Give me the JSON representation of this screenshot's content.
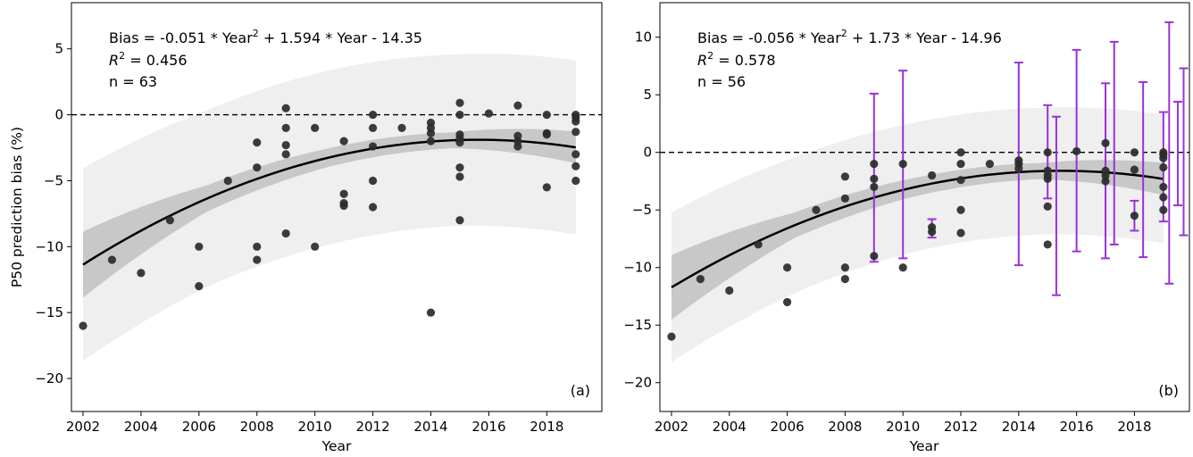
{
  "chart_data": [
    {
      "type": "scatter",
      "panel_label": "(a)",
      "xlabel": "Year",
      "ylabel": "P50 prediction bias (%)",
      "xlim": [
        2001.6,
        2019.9
      ],
      "ylim": [
        -22.5,
        8.5
      ],
      "xticks": [
        2002,
        2004,
        2006,
        2008,
        2010,
        2012,
        2014,
        2016,
        2018
      ],
      "yticks": [
        5,
        0,
        -5,
        -10,
        -15,
        -20
      ],
      "ytick_labels": [
        "5",
        "0",
        "−5",
        "−10",
        "−15",
        "−20"
      ],
      "grid": false,
      "reference_line": {
        "y": 0,
        "style": "dashed"
      },
      "annotation": {
        "eq_prefix": "Bias = -0.051 * Year",
        "eq_exp": "2",
        "eq_suffix": " + 1.594 * Year - 14.35",
        "r2_symbol": "R",
        "r2_exp": "2",
        "r2_value": " = 0.456",
        "n_text": "n = 63"
      },
      "fit": {
        "a": -0.051,
        "b": 1.594,
        "c": -14.35,
        "x_start": 2002,
        "x_end": 2019,
        "ci_half_width": [
          2.5,
          1.0,
          0.7,
          0.6,
          1.2
        ],
        "pi_half_width": [
          7.3,
          6.7,
          6.6,
          6.5,
          6.6
        ]
      },
      "points": [
        [
          2002,
          -16
        ],
        [
          2003,
          -11
        ],
        [
          2004,
          -12
        ],
        [
          2005,
          -8
        ],
        [
          2006,
          -10
        ],
        [
          2006,
          -13
        ],
        [
          2007,
          -5
        ],
        [
          2008,
          -2.1
        ],
        [
          2008,
          -4
        ],
        [
          2008,
          -10
        ],
        [
          2008,
          -11
        ],
        [
          2009,
          0.5
        ],
        [
          2009,
          -1
        ],
        [
          2009,
          -2.3
        ],
        [
          2009,
          -3
        ],
        [
          2009,
          -9
        ],
        [
          2010,
          -1
        ],
        [
          2010,
          -10
        ],
        [
          2011,
          -2
        ],
        [
          2011,
          -6
        ],
        [
          2011,
          -6.7
        ],
        [
          2011,
          -6.9
        ],
        [
          2012,
          0
        ],
        [
          2012,
          -1
        ],
        [
          2012,
          -2.4
        ],
        [
          2012,
          -5
        ],
        [
          2012,
          -7
        ],
        [
          2013,
          -1
        ],
        [
          2014,
          -0.6
        ],
        [
          2014,
          -1
        ],
        [
          2014,
          -1.4
        ],
        [
          2014,
          -2
        ],
        [
          2014,
          -15
        ],
        [
          2015,
          0.9
        ],
        [
          2015,
          0
        ],
        [
          2015,
          -1.5
        ],
        [
          2015,
          -1.8
        ],
        [
          2015,
          -2.1
        ],
        [
          2015,
          -4
        ],
        [
          2015,
          -4.7
        ],
        [
          2015,
          -8
        ],
        [
          2016,
          0.1
        ],
        [
          2017,
          0.7
        ],
        [
          2017,
          -1.6
        ],
        [
          2017,
          -2
        ],
        [
          2017,
          -2.4
        ],
        [
          2018,
          0
        ],
        [
          2018,
          -1.4
        ],
        [
          2018,
          -1.5
        ],
        [
          2018,
          -5.5
        ],
        [
          2019,
          0
        ],
        [
          2019,
          -0.2
        ],
        [
          2019,
          -0.5
        ],
        [
          2019,
          -1.3
        ],
        [
          2019,
          -3
        ],
        [
          2019,
          -3.9
        ],
        [
          2019,
          -5
        ]
      ],
      "colors": {
        "points": "#2b2b2b",
        "fit": "#000000",
        "ci_band": "#c8c8c8",
        "pi_band": "#efefef"
      }
    },
    {
      "type": "scatter",
      "panel_label": "(b)",
      "xlabel": "Year",
      "ylabel": "",
      "xlim": [
        2001.6,
        2019.9
      ],
      "ylim": [
        -22.5,
        13
      ],
      "xticks": [
        2002,
        2004,
        2006,
        2008,
        2010,
        2012,
        2014,
        2016,
        2018
      ],
      "yticks": [
        10,
        5,
        0,
        -5,
        -10,
        -15,
        -20
      ],
      "ytick_labels": [
        "10",
        "5",
        "0",
        "−5",
        "−10",
        "−15",
        "−20"
      ],
      "grid": false,
      "reference_line": {
        "y": 0,
        "style": "dashed"
      },
      "annotation": {
        "eq_prefix": "Bias = -0.056 * Year",
        "eq_exp": "2",
        "eq_suffix": " + 1.73 * Year - 14.96",
        "r2_symbol": "R",
        "r2_exp": "2",
        "r2_value": " = 0.578",
        "n_text": "n = 56"
      },
      "fit": {
        "a": -0.056,
        "b": 1.73,
        "c": -14.96,
        "x_start": 2002,
        "x_end": 2019,
        "ci_half_width": [
          2.8,
          1.1,
          0.8,
          0.7,
          1.4
        ],
        "pi_half_width": [
          6.5,
          5.9,
          5.6,
          5.5,
          5.6
        ]
      },
      "points": [
        [
          2002,
          -16
        ],
        [
          2003,
          -11
        ],
        [
          2004,
          -12
        ],
        [
          2005,
          -8
        ],
        [
          2006,
          -10
        ],
        [
          2006,
          -13
        ],
        [
          2007,
          -5
        ],
        [
          2008,
          -2.1
        ],
        [
          2008,
          -4
        ],
        [
          2008,
          -10
        ],
        [
          2008,
          -11
        ],
        [
          2009,
          -1
        ],
        [
          2009,
          -2.3
        ],
        [
          2009,
          -3
        ],
        [
          2009,
          -9
        ],
        [
          2010,
          -1
        ],
        [
          2010,
          -10
        ],
        [
          2011,
          -2
        ],
        [
          2011,
          -6.5
        ],
        [
          2011,
          -6.9
        ],
        [
          2012,
          0
        ],
        [
          2012,
          -1
        ],
        [
          2012,
          -2.4
        ],
        [
          2012,
          -5
        ],
        [
          2012,
          -7
        ],
        [
          2013,
          -1
        ],
        [
          2014,
          -0.7
        ],
        [
          2014,
          -1
        ],
        [
          2014,
          -1.4
        ],
        [
          2015,
          0
        ],
        [
          2015,
          -1.6
        ],
        [
          2015,
          -2
        ],
        [
          2015,
          -2.3
        ],
        [
          2015,
          -4.7
        ],
        [
          2015,
          -8
        ],
        [
          2016,
          0.1
        ],
        [
          2017,
          0.8
        ],
        [
          2017,
          -1.6
        ],
        [
          2017,
          -2
        ],
        [
          2017,
          -2.5
        ],
        [
          2018,
          0
        ],
        [
          2018,
          -1.5
        ],
        [
          2018,
          -5.5
        ],
        [
          2019,
          0
        ],
        [
          2019,
          -0.2
        ],
        [
          2019,
          -0.5
        ],
        [
          2019,
          -1.3
        ],
        [
          2019,
          -3
        ],
        [
          2019,
          -3.9
        ],
        [
          2019,
          -5
        ]
      ],
      "error_bars": [
        [
          2009,
          5.1,
          -9.5
        ],
        [
          2010,
          7.1,
          -9.2
        ],
        [
          2011,
          -5.8,
          -7.4
        ],
        [
          2014,
          7.8,
          -9.8
        ],
        [
          2015,
          4.1,
          -4
        ],
        [
          2015.3,
          3.1,
          -12.4
        ],
        [
          2016,
          8.9,
          -8.6
        ],
        [
          2017,
          6,
          -9.2
        ],
        [
          2017.3,
          9.6,
          -8
        ],
        [
          2018,
          -4.2,
          -6.8
        ],
        [
          2018.3,
          6.1,
          -9.1
        ],
        [
          2019,
          3.5,
          -6
        ],
        [
          2019.2,
          11.3,
          -11.4
        ],
        [
          2019.5,
          4.4,
          -4.6
        ],
        [
          2019.7,
          7.3,
          -7.2
        ]
      ],
      "colors": {
        "points": "#2b2b2b",
        "fit": "#000000",
        "ci_band": "#c8c8c8",
        "pi_band": "#efefef",
        "error_bars": "#9b30d9"
      }
    }
  ]
}
